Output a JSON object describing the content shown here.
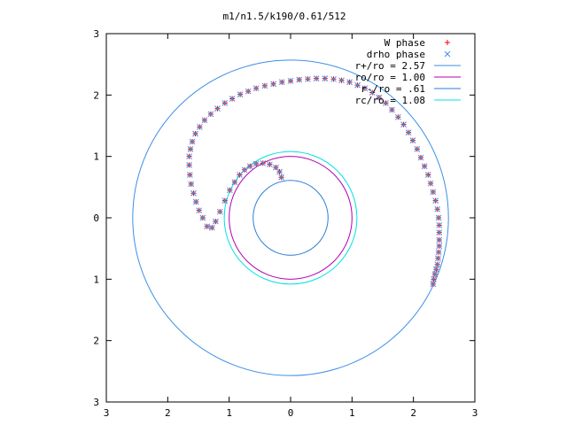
{
  "chart_data": {
    "type": "scatter",
    "title": "m1/n1.5/k190/0.61/512",
    "xlabel": "",
    "ylabel": "",
    "xlim": [
      -3,
      3
    ],
    "ylim": [
      -3,
      3
    ],
    "x_ticks": [
      -3,
      -2,
      -1,
      0,
      1,
      2,
      3
    ],
    "x_tick_labels": [
      "3",
      "2",
      "1",
      "0",
      "1",
      "2",
      "3"
    ],
    "y_ticks": [
      3,
      2,
      1,
      0,
      -1,
      -2,
      -3
    ],
    "y_tick_labels": [
      "3",
      "2",
      "1",
      "0",
      "1",
      "2",
      "3"
    ],
    "grid": false,
    "legend_position": "top-right",
    "series": [
      {
        "name": "W phase",
        "kind": "points",
        "marker": "+",
        "color": "#ff0000",
        "points": [
          [
            2.32,
            -1.08
          ],
          [
            2.33,
            -1.0
          ],
          [
            2.35,
            -0.92
          ],
          [
            2.37,
            -0.84
          ],
          [
            2.39,
            -0.76
          ],
          [
            2.4,
            -0.66
          ],
          [
            2.41,
            -0.56
          ],
          [
            2.42,
            -0.46
          ],
          [
            2.42,
            -0.36
          ],
          [
            2.42,
            -0.24
          ],
          [
            2.42,
            -0.12
          ],
          [
            2.41,
            0.0
          ],
          [
            2.39,
            0.14
          ],
          [
            2.36,
            0.28
          ],
          [
            2.32,
            0.42
          ],
          [
            2.28,
            0.56
          ],
          [
            2.24,
            0.7
          ],
          [
            2.18,
            0.84
          ],
          [
            2.12,
            0.98
          ],
          [
            2.06,
            1.12
          ],
          [
            1.99,
            1.26
          ],
          [
            1.92,
            1.39
          ],
          [
            1.84,
            1.52
          ],
          [
            1.75,
            1.64
          ],
          [
            1.65,
            1.76
          ],
          [
            1.55,
            1.87
          ],
          [
            1.44,
            1.96
          ],
          [
            1.33,
            2.04
          ],
          [
            1.21,
            2.11
          ],
          [
            1.09,
            2.16
          ],
          [
            0.96,
            2.21
          ],
          [
            0.83,
            2.24
          ],
          [
            0.7,
            2.26
          ],
          [
            0.56,
            2.27
          ],
          [
            0.42,
            2.27
          ],
          [
            0.28,
            2.26
          ],
          [
            0.14,
            2.25
          ],
          [
            0.0,
            2.23
          ],
          [
            -0.14,
            2.21
          ],
          [
            -0.28,
            2.18
          ],
          [
            -0.42,
            2.15
          ],
          [
            -0.56,
            2.11
          ],
          [
            -0.69,
            2.06
          ],
          [
            -0.82,
            2.01
          ],
          [
            -0.95,
            1.94
          ],
          [
            -1.07,
            1.87
          ],
          [
            -1.19,
            1.78
          ],
          [
            -1.3,
            1.69
          ],
          [
            -1.4,
            1.59
          ],
          [
            -1.48,
            1.48
          ],
          [
            -1.55,
            1.37
          ],
          [
            -1.6,
            1.24
          ],
          [
            -1.63,
            1.12
          ],
          [
            -1.65,
            1.0
          ],
          [
            -1.65,
            0.86
          ],
          [
            -1.64,
            0.7
          ],
          [
            -1.62,
            0.55
          ],
          [
            -1.58,
            0.4
          ],
          [
            -1.54,
            0.26
          ],
          [
            -1.49,
            0.12
          ],
          [
            -1.43,
            0.0
          ],
          [
            -1.36,
            -0.14
          ],
          [
            -1.28,
            -0.16
          ],
          [
            -1.22,
            -0.06
          ],
          [
            -1.15,
            0.1
          ],
          [
            -1.07,
            0.28
          ],
          [
            -0.99,
            0.45
          ],
          [
            -0.91,
            0.58
          ],
          [
            -0.83,
            0.7
          ],
          [
            -0.75,
            0.78
          ],
          [
            -0.66,
            0.84
          ],
          [
            -0.56,
            0.88
          ],
          [
            -0.45,
            0.89
          ],
          [
            -0.34,
            0.87
          ],
          [
            -0.24,
            0.82
          ],
          [
            -0.18,
            0.75
          ],
          [
            -0.15,
            0.66
          ]
        ]
      },
      {
        "name": "drho phase",
        "kind": "points",
        "marker": "x",
        "color": "#3d8fe6",
        "points": [
          [
            2.32,
            -1.08
          ],
          [
            2.33,
            -1.0
          ],
          [
            2.35,
            -0.92
          ],
          [
            2.37,
            -0.84
          ],
          [
            2.39,
            -0.76
          ],
          [
            2.4,
            -0.66
          ],
          [
            2.41,
            -0.56
          ],
          [
            2.42,
            -0.46
          ],
          [
            2.42,
            -0.36
          ],
          [
            2.42,
            -0.24
          ],
          [
            2.42,
            -0.12
          ],
          [
            2.41,
            0.0
          ],
          [
            2.39,
            0.14
          ],
          [
            2.36,
            0.28
          ],
          [
            2.32,
            0.42
          ],
          [
            2.28,
            0.56
          ],
          [
            2.24,
            0.7
          ],
          [
            2.18,
            0.84
          ],
          [
            2.12,
            0.98
          ],
          [
            2.06,
            1.12
          ],
          [
            1.99,
            1.26
          ],
          [
            1.92,
            1.39
          ],
          [
            1.84,
            1.52
          ],
          [
            1.75,
            1.64
          ],
          [
            1.65,
            1.76
          ],
          [
            1.55,
            1.87
          ],
          [
            1.44,
            1.96
          ],
          [
            1.33,
            2.04
          ],
          [
            1.21,
            2.11
          ],
          [
            1.09,
            2.16
          ],
          [
            0.96,
            2.21
          ],
          [
            0.83,
            2.24
          ],
          [
            0.7,
            2.26
          ],
          [
            0.56,
            2.27
          ],
          [
            0.42,
            2.27
          ],
          [
            0.28,
            2.26
          ],
          [
            0.14,
            2.25
          ],
          [
            0.0,
            2.23
          ],
          [
            -0.14,
            2.21
          ],
          [
            -0.28,
            2.18
          ],
          [
            -0.42,
            2.15
          ],
          [
            -0.56,
            2.11
          ],
          [
            -0.69,
            2.06
          ],
          [
            -0.82,
            2.01
          ],
          [
            -0.95,
            1.94
          ],
          [
            -1.07,
            1.87
          ],
          [
            -1.19,
            1.78
          ],
          [
            -1.3,
            1.69
          ],
          [
            -1.4,
            1.59
          ],
          [
            -1.48,
            1.48
          ],
          [
            -1.55,
            1.37
          ],
          [
            -1.6,
            1.24
          ],
          [
            -1.63,
            1.12
          ],
          [
            -1.65,
            1.0
          ],
          [
            -1.65,
            0.86
          ],
          [
            -1.64,
            0.7
          ],
          [
            -1.62,
            0.55
          ],
          [
            -1.58,
            0.4
          ],
          [
            -1.54,
            0.26
          ],
          [
            -1.49,
            0.12
          ],
          [
            -1.43,
            0.0
          ],
          [
            -1.36,
            -0.14
          ],
          [
            -1.28,
            -0.16
          ],
          [
            -1.22,
            -0.06
          ],
          [
            -1.15,
            0.1
          ],
          [
            -1.07,
            0.28
          ],
          [
            -0.99,
            0.45
          ],
          [
            -0.91,
            0.58
          ],
          [
            -0.83,
            0.7
          ],
          [
            -0.75,
            0.78
          ],
          [
            -0.66,
            0.84
          ],
          [
            -0.56,
            0.88
          ],
          [
            -0.45,
            0.89
          ],
          [
            -0.34,
            0.87
          ],
          [
            -0.24,
            0.82
          ],
          [
            -0.18,
            0.75
          ],
          [
            -0.15,
            0.66
          ]
        ]
      },
      {
        "name": "r+/ro = 2.57",
        "kind": "circle",
        "radius": 2.57,
        "color": "#3d8fe6"
      },
      {
        "name": "ro/ro = 1.00",
        "kind": "circle",
        "radius": 1.0,
        "color": "#b300b3"
      },
      {
        "name": "r-/ro = .61",
        "kind": "circle",
        "radius": 0.61,
        "color": "#2b7fd6"
      },
      {
        "name": "rc/ro = 1.08",
        "kind": "circle",
        "radius": 1.08,
        "color": "#00e0e0"
      }
    ]
  }
}
